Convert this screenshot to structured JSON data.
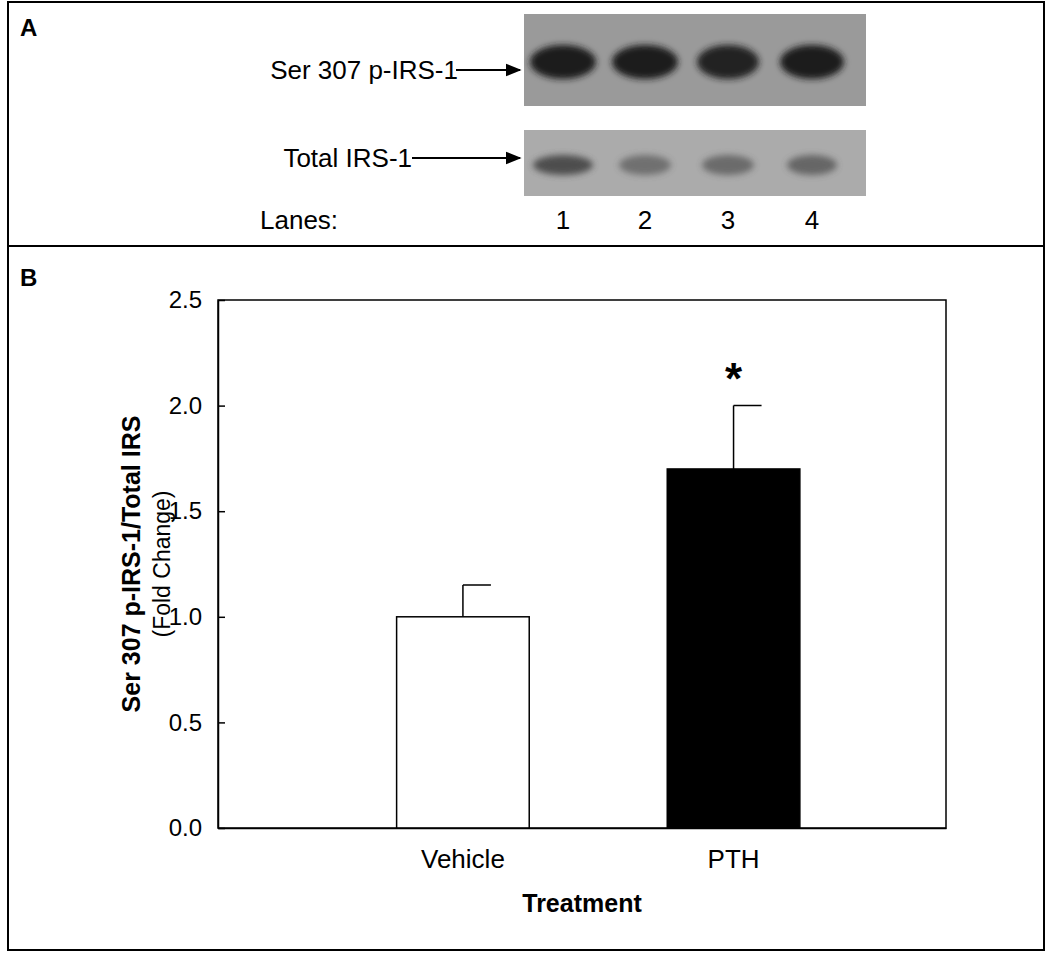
{
  "panel_a": {
    "label": "A",
    "rows": [
      "Ser 307 p-IRS-1",
      "Total IRS-1"
    ],
    "lanes_label": "Lanes:",
    "lanes": [
      "1",
      "2",
      "3",
      "4"
    ]
  },
  "chart_data": {
    "type": "bar",
    "panel_label": "B",
    "categories": [
      "Vehicle",
      "PTH"
    ],
    "values": [
      1.0,
      1.7
    ],
    "errors": [
      0.15,
      0.3
    ],
    "colors": [
      "#ffffff",
      "#000000"
    ],
    "significance": [
      null,
      "*"
    ],
    "xlabel": "Treatment",
    "ylabel": "Ser 307 p-IRS-1/Total IRS",
    "ylabel_note": "(Fold Change)",
    "ylim": [
      0,
      2.5
    ],
    "yticks": [
      {
        "value": 0,
        "label": "0.0"
      },
      {
        "value": 0.5,
        "label": "0.5"
      },
      {
        "value": 1,
        "label": "1.0"
      },
      {
        "value": 1.5,
        "label": "1.5"
      },
      {
        "value": 2,
        "label": "2.0"
      },
      {
        "value": 2.5,
        "label": "2.5"
      }
    ],
    "grid": false
  }
}
